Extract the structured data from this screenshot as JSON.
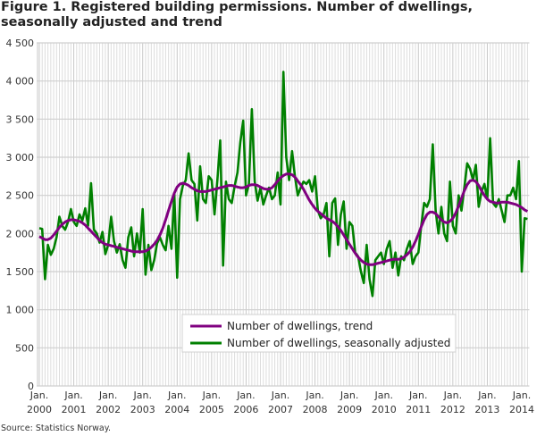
{
  "chart_data": {
    "type": "line",
    "title": "Figure 1. Registered building permissions.  Number of dwellings, seasonally adjusted and trend",
    "source": "Source: Statistics Norway.",
    "xlabel": "",
    "ylabel": "",
    "ylim": [
      0,
      4500
    ],
    "yticks": [
      {
        "value": 0,
        "label": "0"
      },
      {
        "value": 500,
        "label": "500"
      },
      {
        "value": 1000,
        "label": "1 000"
      },
      {
        "value": 1500,
        "label": "1 500"
      },
      {
        "value": 2000,
        "label": "2 000"
      },
      {
        "value": 2500,
        "label": "2 500"
      },
      {
        "value": 3000,
        "label": "3 000"
      },
      {
        "value": 3500,
        "label": "3 500"
      },
      {
        "value": 4000,
        "label": "4 000"
      },
      {
        "value": 4500,
        "label": "4 500"
      }
    ],
    "xticks": [
      {
        "month_index": 0,
        "line1": "Jan.",
        "line2": "2000"
      },
      {
        "month_index": 12,
        "line1": "Jan.",
        "line2": "2001"
      },
      {
        "month_index": 24,
        "line1": "Jan.",
        "line2": "2002"
      },
      {
        "month_index": 36,
        "line1": "Jan.",
        "line2": "2003"
      },
      {
        "month_index": 48,
        "line1": "Jan.",
        "line2": "2004"
      },
      {
        "month_index": 60,
        "line1": "Jan.",
        "line2": "2005"
      },
      {
        "month_index": 72,
        "line1": "Jan.",
        "line2": "2006"
      },
      {
        "month_index": 84,
        "line1": "Jan.",
        "line2": "2007"
      },
      {
        "month_index": 96,
        "line1": "Jan.",
        "line2": "2008"
      },
      {
        "month_index": 108,
        "line1": "Jan.",
        "line2": "2009"
      },
      {
        "month_index": 120,
        "line1": "Jan.",
        "line2": "2010"
      },
      {
        "month_index": 132,
        "line1": "Jan.",
        "line2": "2011"
      },
      {
        "month_index": 144,
        "line1": "Jan.",
        "line2": "2012"
      },
      {
        "month_index": 156,
        "line1": "Jan.",
        "line2": "2013"
      },
      {
        "month_index": 168,
        "line1": "Jan.",
        "line2": "2014"
      }
    ],
    "x_start": "2000-01",
    "x_frequency": "monthly",
    "grid": true,
    "legend_position": "bottom-center",
    "series": [
      {
        "name": "Number of dwellings, trend",
        "color": "#800080",
        "values": [
          1960,
          1940,
          1920,
          1920,
          1940,
          1980,
          2030,
          2080,
          2120,
          2150,
          2170,
          2180,
          2180,
          2170,
          2160,
          2140,
          2110,
          2070,
          2030,
          1990,
          1950,
          1910,
          1880,
          1860,
          1850,
          1840,
          1830,
          1820,
          1810,
          1800,
          1790,
          1780,
          1770,
          1760,
          1760,
          1760,
          1760,
          1770,
          1790,
          1820,
          1860,
          1910,
          1980,
          2070,
          2180,
          2300,
          2420,
          2530,
          2610,
          2650,
          2660,
          2650,
          2630,
          2600,
          2580,
          2560,
          2550,
          2550,
          2550,
          2560,
          2570,
          2580,
          2590,
          2600,
          2610,
          2620,
          2630,
          2630,
          2620,
          2610,
          2600,
          2600,
          2610,
          2630,
          2640,
          2640,
          2630,
          2610,
          2590,
          2580,
          2580,
          2600,
          2640,
          2690,
          2730,
          2760,
          2780,
          2780,
          2770,
          2740,
          2690,
          2640,
          2580,
          2510,
          2440,
          2380,
          2330,
          2290,
          2260,
          2230,
          2200,
          2180,
          2160,
          2130,
          2090,
          2040,
          1980,
          1920,
          1860,
          1800,
          1740,
          1690,
          1650,
          1620,
          1600,
          1590,
          1590,
          1600,
          1610,
          1620,
          1630,
          1640,
          1650,
          1660,
          1660,
          1660,
          1670,
          1690,
          1720,
          1760,
          1820,
          1900,
          1990,
          2090,
          2180,
          2250,
          2280,
          2280,
          2260,
          2220,
          2180,
          2150,
          2140,
          2160,
          2200,
          2270,
          2360,
          2460,
          2560,
          2640,
          2690,
          2700,
          2680,
          2630,
          2560,
          2500,
          2450,
          2420,
          2410,
          2400,
          2400,
          2410,
          2410,
          2410,
          2400,
          2390,
          2380,
          2360,
          2340,
          2310,
          2290
        ]
      },
      {
        "name": "Number of dwellings, seasonally adjusted",
        "color": "#008000",
        "values": [
          2070,
          2060,
          1400,
          1850,
          1720,
          1800,
          1950,
          2220,
          2100,
          2050,
          2150,
          2320,
          2150,
          2100,
          2250,
          2170,
          2330,
          2100,
          2660,
          2050,
          2000,
          1880,
          2020,
          1730,
          1850,
          2220,
          1900,
          1750,
          1860,
          1650,
          1550,
          1950,
          2080,
          1700,
          2000,
          1750,
          2320,
          1460,
          1850,
          1520,
          1650,
          1870,
          1950,
          1850,
          1780,
          2100,
          1800,
          2520,
          1420,
          2450,
          2630,
          2700,
          3050,
          2700,
          2650,
          2170,
          2880,
          2450,
          2400,
          2750,
          2700,
          2250,
          2700,
          3220,
          1580,
          2680,
          2450,
          2400,
          2620,
          2800,
          3200,
          3480,
          2500,
          2650,
          3630,
          2680,
          2430,
          2600,
          2380,
          2500,
          2600,
          2450,
          2500,
          2800,
          2380,
          4120,
          3000,
          2700,
          3080,
          2750,
          2500,
          2600,
          2680,
          2650,
          2700,
          2550,
          2750,
          2300,
          2200,
          2250,
          2400,
          1700,
          2400,
          2460,
          1850,
          2250,
          2420,
          1800,
          2150,
          2100,
          1750,
          1700,
          1500,
          1350,
          1850,
          1400,
          1180,
          1650,
          1700,
          1750,
          1600,
          1800,
          1900,
          1550,
          1750,
          1450,
          1700,
          1650,
          1800,
          1900,
          1600,
          1700,
          1750,
          2100,
          2400,
          2350,
          2450,
          3170,
          2300,
          2000,
          2350,
          2000,
          1900,
          2680,
          2100,
          2000,
          2500,
          2300,
          2600,
          2920,
          2850,
          2700,
          2900,
          2350,
          2550,
          2650,
          2450,
          3250,
          2400,
          2350,
          2450,
          2300,
          2150,
          2500,
          2500,
          2600,
          2450,
          2950,
          1500,
          2200,
          2190
        ]
      }
    ]
  }
}
